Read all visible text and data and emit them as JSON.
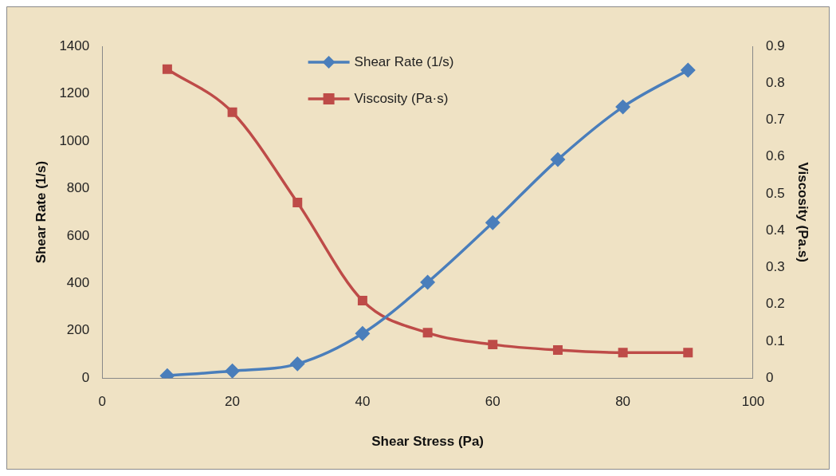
{
  "chart_data": {
    "type": "line",
    "xlabel": "Shear Stress (Pa)",
    "ylabel": "Shear Rate (1/s)",
    "y2label": "Viscosity (Pa.s)",
    "x": [
      10,
      20,
      30,
      40,
      50,
      60,
      70,
      80,
      90
    ],
    "xlim": [
      0,
      100
    ],
    "xticks": [
      0,
      20,
      40,
      60,
      80,
      100
    ],
    "ylim": [
      0,
      1400
    ],
    "yticks": [
      0,
      200,
      400,
      600,
      800,
      1000,
      1200,
      1400
    ],
    "y2lim": [
      0,
      0.9
    ],
    "y2ticks": [
      0,
      0.1,
      0.2,
      0.3,
      0.4,
      0.5,
      0.6,
      0.7,
      0.8,
      0.9
    ],
    "series": [
      {
        "name": "Shear Rate (1/s)",
        "color": "#4a7ebb",
        "marker": "diamond",
        "values": [
          10,
          30,
          60,
          188,
          404,
          656,
          922,
          1144,
          1299
        ]
      },
      {
        "name": "Viscosity (Pa·s)",
        "color": "#be4b48",
        "marker": "square",
        "axis": "y2",
        "values": [
          0.838,
          0.721,
          0.476,
          0.21,
          0.123,
          0.091,
          0.076,
          0.069,
          0.069
        ]
      }
    ],
    "grid": false,
    "legend": "top",
    "line_style": "solid"
  }
}
